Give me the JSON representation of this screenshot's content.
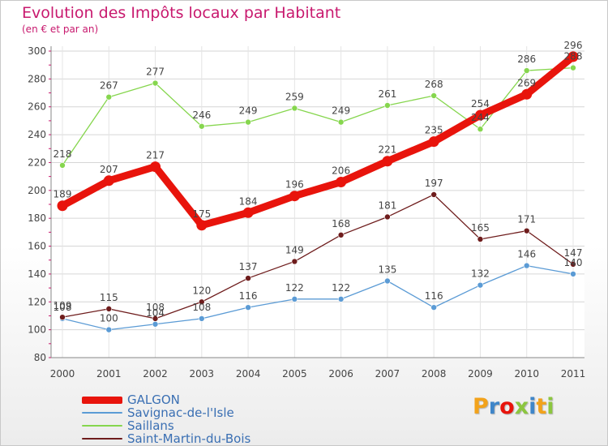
{
  "chart_data": {
    "type": "line",
    "title": "Evolution des Impôts locaux par Habitant",
    "subtitle": "(en € et par an)",
    "xlabel": "",
    "ylabel": "",
    "ylim": [
      80,
      300
    ],
    "yticks": [
      "80",
      "100",
      "120",
      "140",
      "160",
      "180",
      "200",
      "220",
      "240",
      "260",
      "280",
      "300"
    ],
    "categories": [
      "2000",
      "2001",
      "2002",
      "2003",
      "2004",
      "2005",
      "2006",
      "2007",
      "2008",
      "2009",
      "2010",
      "2011"
    ],
    "series": [
      {
        "name": "GALGON",
        "color": "#e8140c",
        "values": [
          189,
          207,
          217,
          175,
          184,
          196,
          206,
          221,
          235,
          254,
          269,
          296
        ]
      },
      {
        "name": "Savignac-de-l'Isle",
        "color": "#5b9bd5",
        "values": [
          108,
          100,
          104,
          108,
          116,
          122,
          122,
          135,
          116,
          132,
          146,
          140
        ]
      },
      {
        "name": "Saillans",
        "color": "#86d64e",
        "values": [
          218,
          267,
          277,
          246,
          249,
          259,
          249,
          261,
          268,
          244,
          286,
          288
        ]
      },
      {
        "name": "Saint-Martin-du-Bois",
        "color": "#6e1c1c",
        "values": [
          109,
          115,
          108,
          120,
          137,
          149,
          168,
          181,
          197,
          165,
          171,
          147
        ]
      }
    ],
    "grid": true,
    "legend": "bottom-left"
  },
  "brand": {
    "letters": [
      "P",
      "r",
      "o",
      "x",
      "i",
      "t",
      "i"
    ],
    "colors": [
      "#f2a21b",
      "#3f86c9",
      "#e8140c",
      "#8cc63f",
      "#3f86c9",
      "#f2a21b",
      "#8cc63f"
    ]
  }
}
